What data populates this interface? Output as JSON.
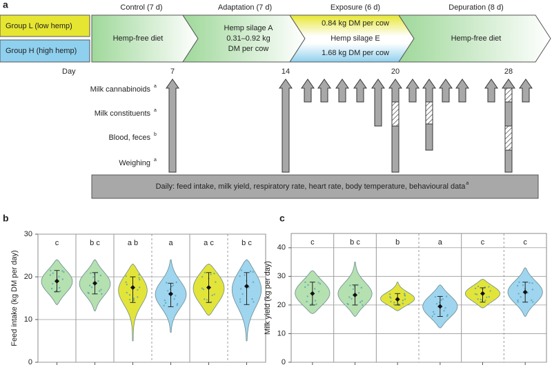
{
  "panel_a": {
    "label": "a",
    "groups": [
      "Group L (low hemp)",
      "Group H (high hemp)"
    ],
    "phases": [
      {
        "title": "Control (7 d)",
        "text": [
          "Hemp-free diet"
        ]
      },
      {
        "title": "Adaptation (7 d)",
        "text": [
          "Hemp silage A",
          "0.31–0.92 kg",
          "DM per cow"
        ]
      },
      {
        "title": "Exposure (6 d)",
        "text": [
          "0.84 kg DM per cow",
          "Hemp silage E",
          "1.68 kg DM per cow"
        ]
      },
      {
        "title": "Depuration (8 d)",
        "text": [
          "Hemp-free diet"
        ]
      }
    ],
    "day_label": "Day",
    "days": [
      "7",
      "14",
      "20",
      "28"
    ],
    "rows": [
      {
        "label": "Milk cannabinoids",
        "note": "a"
      },
      {
        "label": "Milk constituents",
        "note": "a"
      },
      {
        "label": "Blood, feces",
        "note": "b"
      },
      {
        "label": "Weighing",
        "note": "a"
      }
    ],
    "footer": {
      "text": "Daily: feed intake, milk yield, respiratory rate, heart rate, body temperature, behavioural data",
      "note": "a"
    }
  },
  "chart_data": [
    {
      "type": "violin",
      "panel": "b",
      "y_label": "Feed intake (kg DM per day)",
      "ylim": [
        0,
        30
      ],
      "yticks": [
        0,
        10,
        20,
        30
      ],
      "grid": true,
      "colors": [
        "#b5e0b0",
        "#b5e0b0",
        "#e3e43a",
        "#9fd5ee",
        "#e3e43a",
        "#9fd5ee"
      ],
      "letters": [
        "c",
        "b c",
        "a b",
        "a",
        "a c",
        "b c"
      ],
      "values": [
        19,
        18.5,
        17.5,
        16,
        17.5,
        17.8
      ],
      "lower": [
        16.5,
        16,
        14,
        13,
        14,
        13.5
      ],
      "upper": [
        21.5,
        21,
        20,
        18.5,
        21,
        21
      ],
      "min": [
        13.5,
        12,
        5,
        7,
        11,
        5
      ],
      "max": [
        24,
        24,
        23,
        24,
        23,
        24
      ]
    },
    {
      "type": "violin",
      "panel": "c",
      "y_label": "Milk yield (kg per day)",
      "ylim": [
        0,
        45
      ],
      "yticks": [
        0,
        10,
        20,
        30,
        40
      ],
      "grid": true,
      "colors": [
        "#b5e0b0",
        "#b5e0b0",
        "#e3e43a",
        "#9fd5ee",
        "#e3e43a",
        "#9fd5ee"
      ],
      "letters": [
        "c",
        "b c",
        "b",
        "a",
        "c",
        "c"
      ],
      "values": [
        24,
        23.5,
        22,
        19.5,
        24,
        24.5
      ],
      "lower": [
        20,
        20,
        20,
        16,
        21,
        21
      ],
      "upper": [
        28,
        27,
        24,
        23,
        26,
        28
      ],
      "min": [
        17,
        16,
        18,
        12,
        19,
        16
      ],
      "max": [
        32,
        35,
        28,
        27,
        29,
        33
      ]
    }
  ]
}
